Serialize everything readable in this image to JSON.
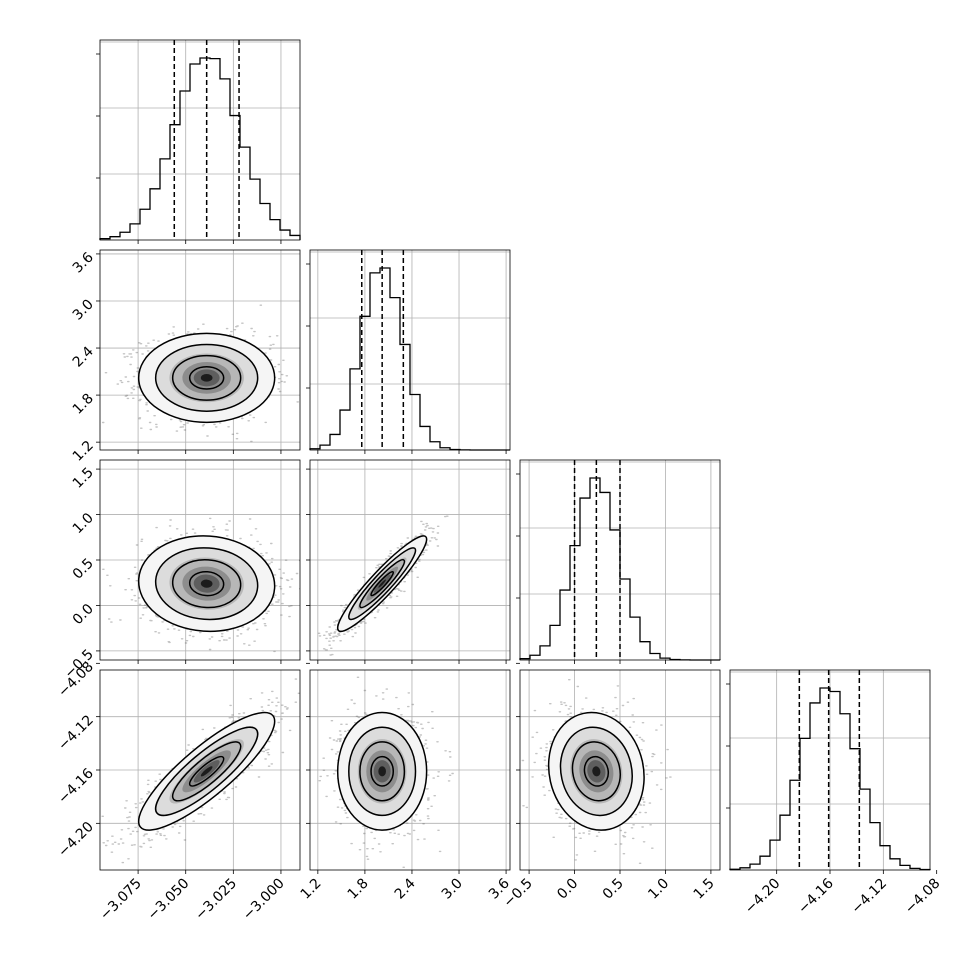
{
  "chart_data": {
    "type": "corner",
    "grid": true,
    "params": [
      {
        "range": [
          -3.095,
          -2.99
        ],
        "ticks": [
          -3.075,
          -3.05,
          -3.025,
          -3.0
        ],
        "tick_labels": [
          "−3.075",
          "−3.050",
          "−3.025",
          "−3.000"
        ],
        "mean": -3.039,
        "sd": 0.017,
        "quantiles": [
          -3.056,
          -3.039,
          -3.022
        ]
      },
      {
        "range": [
          1.1,
          3.65
        ],
        "ticks": [
          1.2,
          1.8,
          2.4,
          3.0,
          3.6
        ],
        "tick_labels": [
          "1.2",
          "1.8",
          "2.4",
          "3.0",
          "3.6"
        ],
        "mean": 2.02,
        "sd": 0.27,
        "quantiles": [
          1.76,
          2.02,
          2.29
        ]
      },
      {
        "range": [
          -0.6,
          1.6
        ],
        "ticks": [
          -0.5,
          0.0,
          0.5,
          1.0,
          1.5
        ],
        "tick_labels": [
          "−0.5",
          "0.0",
          "0.5",
          "1.0",
          "1.5"
        ],
        "mean": 0.24,
        "sd": 0.25,
        "quantiles": [
          0.0,
          0.24,
          0.5
        ]
      },
      {
        "range": [
          -4.235,
          -4.085
        ],
        "ticks": [
          -4.2,
          -4.16,
          -4.12,
          -4.08
        ],
        "tick_labels": [
          "−4.20",
          "−4.16",
          "−4.12",
          "−4.08"
        ],
        "mean": -4.161,
        "sd": 0.021,
        "quantiles": [
          -4.183,
          -4.161,
          -4.138
        ]
      }
    ],
    "correlations": [
      {
        "i": 1,
        "j": 0,
        "rho": 0.0
      },
      {
        "i": 2,
        "j": 0,
        "rho": -0.05
      },
      {
        "i": 2,
        "j": 1,
        "rho": 0.93
      },
      {
        "i": 3,
        "j": 0,
        "rho": 0.85
      },
      {
        "i": 3,
        "j": 1,
        "rho": 0.0
      },
      {
        "i": 3,
        "j": 2,
        "rho": -0.1
      }
    ],
    "contour_levels_sigma": [
      0.5,
      1.0,
      1.5,
      2.0
    ]
  }
}
